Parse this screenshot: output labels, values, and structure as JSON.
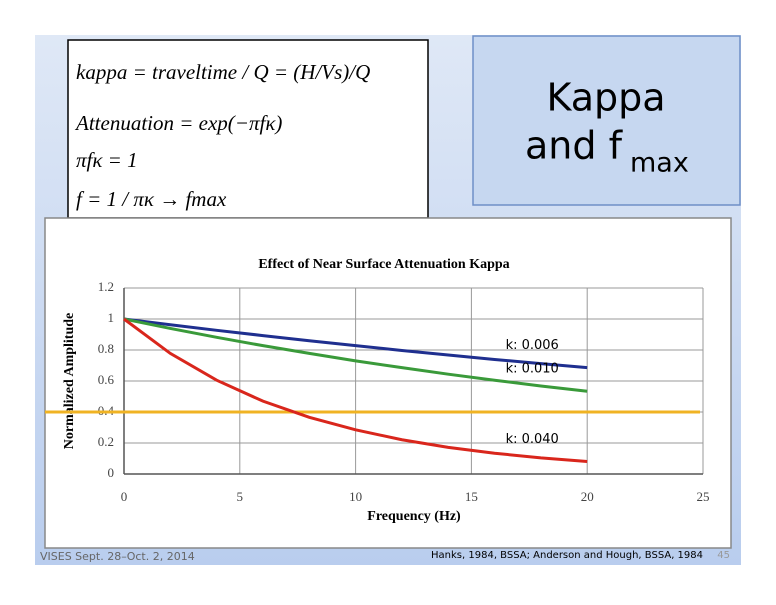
{
  "slide": {
    "equations": [
      "kappa = traveltime / Q = (H/Vs)/Q",
      "Attenuation = exp(−πfκ)",
      "πfκ = 1",
      "f = 1 / πκ → fmax"
    ],
    "title": [
      "Kappa",
      "and f",
      "max"
    ],
    "footer_left": "VISES Sept. 28–Oct. 2, 2014",
    "footer_right": "Hanks, 1984, BSSA; Anderson and Hough, BSSA, 1984",
    "page": "45"
  },
  "chart_data": {
    "type": "line",
    "title": "Effect of Near Surface Attenuation Kappa",
    "xlabel": "Frequency (Hz)",
    "ylabel": "Normalized Amplitude",
    "x": [
      0,
      2,
      4,
      6,
      8,
      10,
      12,
      14,
      16,
      18,
      20
    ],
    "series": [
      {
        "name": "k: 0.006",
        "color": "#1f2f8f",
        "values": [
          1,
          0.963,
          0.927,
          0.893,
          0.86,
          0.828,
          0.797,
          0.768,
          0.739,
          0.712,
          0.686
        ]
      },
      {
        "name": "k: 0.010",
        "color": "#3a9a3a",
        "values": [
          1,
          0.939,
          0.882,
          0.828,
          0.778,
          0.73,
          0.686,
          0.644,
          0.605,
          0.568,
          0.534
        ]
      },
      {
        "name": "k: 0.040",
        "color": "#d9261c",
        "values": [
          1,
          0.778,
          0.605,
          0.47,
          0.366,
          0.285,
          0.221,
          0.172,
          0.134,
          0.104,
          0.081
        ]
      }
    ],
    "reference_line": {
      "value": 0.4,
      "color": "#f0b323"
    },
    "xlim": [
      0,
      25
    ],
    "xticks": [
      0,
      5,
      10,
      15,
      20,
      25
    ],
    "ylim": [
      0,
      1.2
    ],
    "yticks": [
      0,
      0.2,
      0.4,
      0.6,
      0.8,
      1,
      1.2
    ],
    "grid": true
  }
}
